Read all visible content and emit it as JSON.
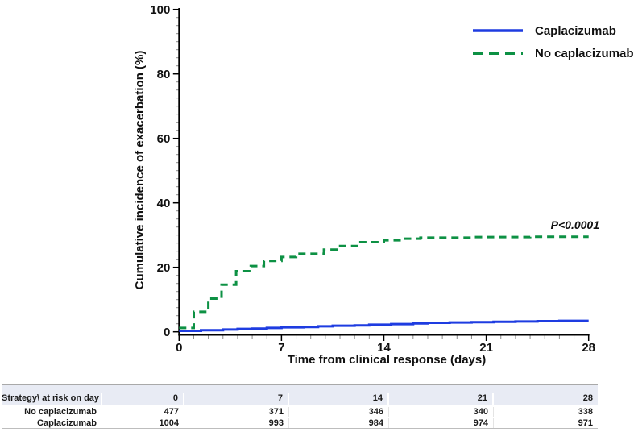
{
  "chart_data": {
    "type": "line",
    "subtype": "step-cumulative-incidence",
    "title": "",
    "xlabel": "Time from clinical response (days)",
    "ylabel": "Cumulative incidence of exacerbation (%)",
    "xlim": [
      0,
      28
    ],
    "ylim": [
      0,
      100
    ],
    "x_ticks": [
      0,
      7,
      14,
      21,
      28
    ],
    "y_ticks": [
      0,
      20,
      40,
      60,
      80,
      100
    ],
    "x_minor_step": 1,
    "y_minor_step": 2.5,
    "grid": false,
    "legend_position": "top-right",
    "annotation": {
      "text": "P<0.0001",
      "x": 26.5,
      "y": 33
    },
    "series": [
      {
        "name": "Caplacizumab",
        "color": "#1e3ce1",
        "style": "solid",
        "points": [
          [
            0,
            0.3
          ],
          [
            1.5,
            0.5
          ],
          [
            3,
            0.7
          ],
          [
            4,
            0.9
          ],
          [
            5,
            1.0
          ],
          [
            6,
            1.2
          ],
          [
            7,
            1.4
          ],
          [
            8.5,
            1.5
          ],
          [
            9.5,
            1.7
          ],
          [
            10.5,
            1.9
          ],
          [
            12,
            2.0
          ],
          [
            13,
            2.2
          ],
          [
            14.5,
            2.4
          ],
          [
            16,
            2.6
          ],
          [
            17,
            2.8
          ],
          [
            18.5,
            2.9
          ],
          [
            20,
            3.0
          ],
          [
            21.5,
            3.1
          ],
          [
            23,
            3.2
          ],
          [
            24.5,
            3.3
          ],
          [
            26,
            3.4
          ],
          [
            28,
            3.4
          ]
        ]
      },
      {
        "name": "No caplacizumab",
        "color": "#0d9144",
        "style": "dashed",
        "points": [
          [
            0,
            1.2
          ],
          [
            1,
            6.2
          ],
          [
            2,
            10.3
          ],
          [
            2.9,
            14.6
          ],
          [
            3.9,
            18.8
          ],
          [
            4.9,
            20.4
          ],
          [
            5.8,
            22.0
          ],
          [
            7,
            23.2
          ],
          [
            8,
            24.2
          ],
          [
            9.9,
            25.5
          ],
          [
            10.9,
            26.6
          ],
          [
            12.4,
            27.8
          ],
          [
            14,
            28.4
          ],
          [
            15.3,
            28.9
          ],
          [
            16.5,
            29.2
          ],
          [
            20,
            29.4
          ],
          [
            24,
            29.5
          ],
          [
            28,
            29.5
          ]
        ]
      }
    ]
  },
  "risk_table": {
    "header": [
      "Strategy\\ at risk on day",
      "0",
      "7",
      "14",
      "21",
      "28"
    ],
    "rows": [
      {
        "label": "No caplacizumab",
        "values": [
          "477",
          "371",
          "346",
          "340",
          "338"
        ]
      },
      {
        "label": "Caplacizumab",
        "values": [
          "1004",
          "993",
          "984",
          "974",
          "971"
        ]
      }
    ]
  },
  "colors": {
    "caplacizumab_line": "#1e3ce1",
    "no_caplacizumab_line": "#0d9144",
    "table_header_bg": "#e8ebf4",
    "axis": "#000000",
    "minor_tick": "#8a8a8a"
  }
}
